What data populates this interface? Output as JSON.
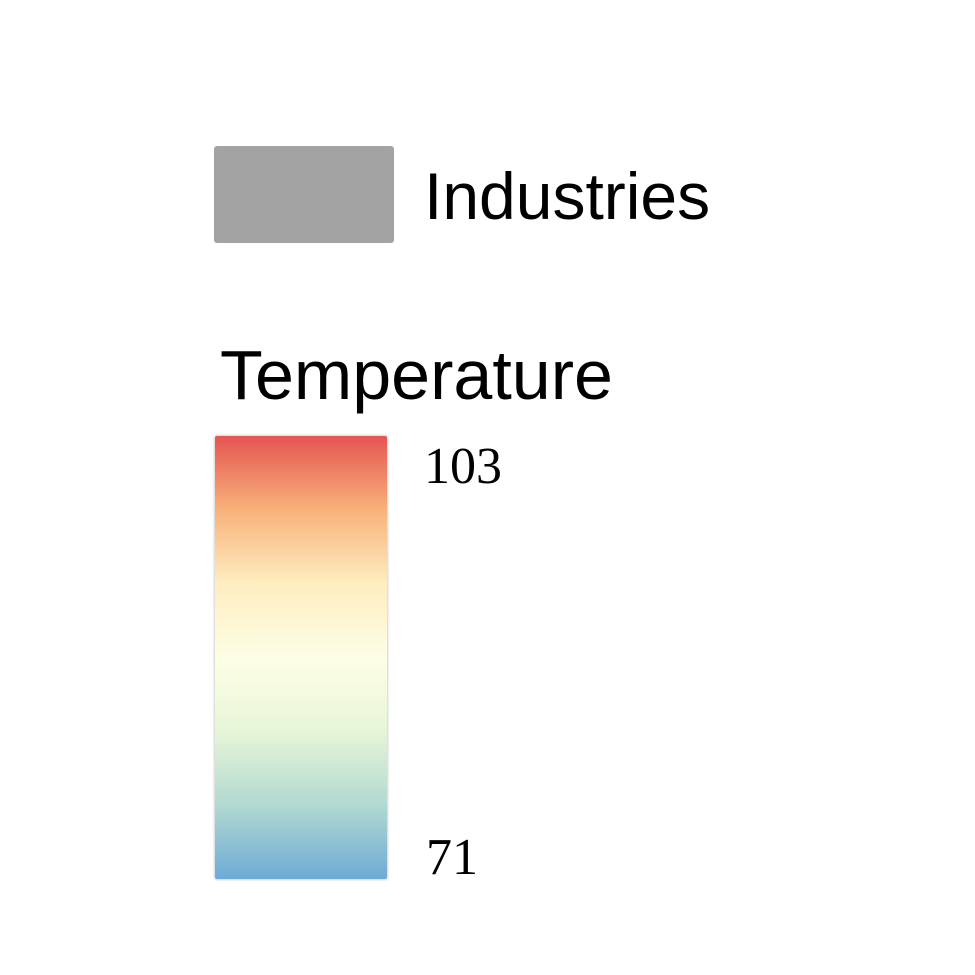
{
  "legend": {
    "industries": {
      "label": "Industries",
      "color": "#a3a3a3"
    },
    "temperature": {
      "title": "Temperature",
      "max_label": "103",
      "min_label": "71",
      "max_value": 103,
      "min_value": 71,
      "gradient_stops": [
        "#e45552",
        "#f8b27a",
        "#feedc0",
        "#fdfee6",
        "#e7f5d8",
        "#b2d9d1",
        "#6eaad6"
      ]
    }
  }
}
